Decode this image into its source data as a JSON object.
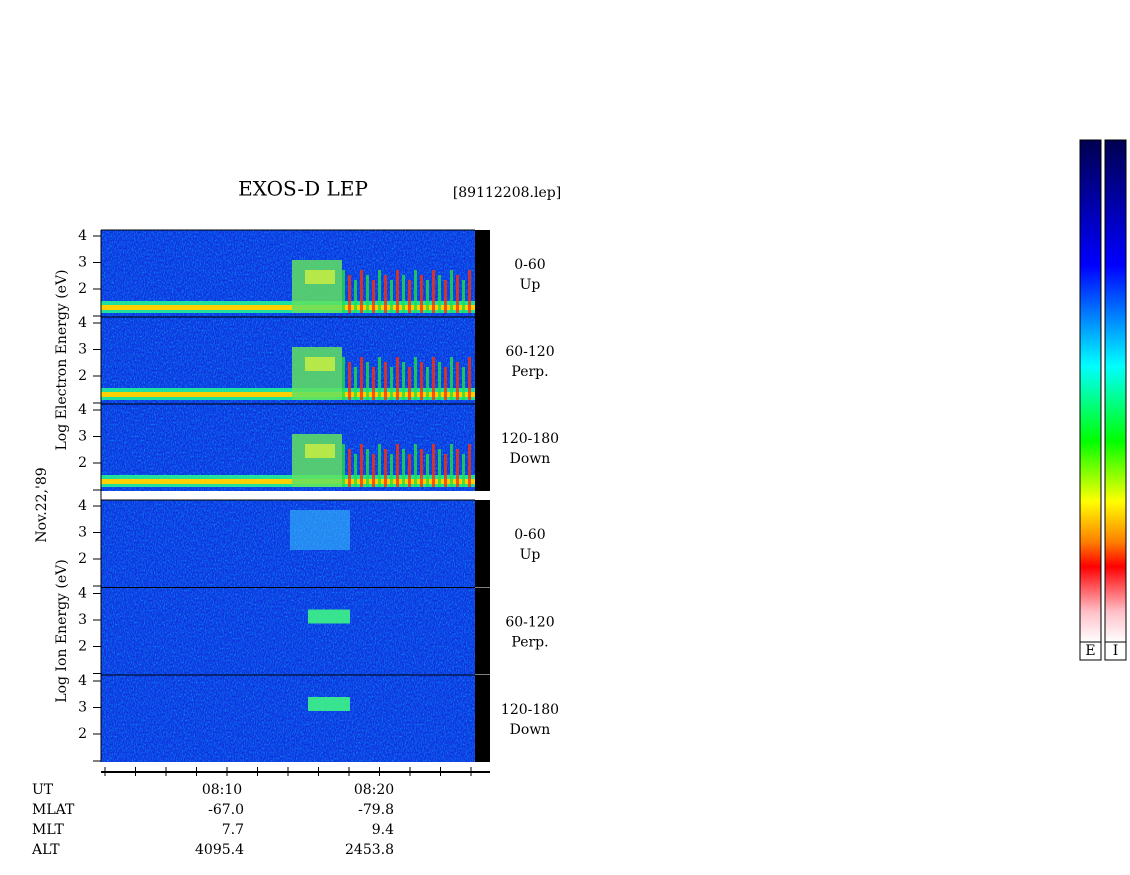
{
  "header": {
    "title": "EXOS-D LEP",
    "file": "[89112208.lep]",
    "date": "Nov.22,'89"
  },
  "energy_ticks": [
    4,
    3,
    2
  ],
  "electron": {
    "axis_label": "Log  Electron  Energy (eV)",
    "channels": [
      {
        "range": "0-60",
        "direction": "Up"
      },
      {
        "range": "60-120",
        "direction": "Perp."
      },
      {
        "range": "120-180",
        "direction": "Down"
      }
    ]
  },
  "ion": {
    "axis_label": "Log  Ion  Energy (eV)",
    "channels": [
      {
        "range": "0-60",
        "direction": "Up"
      },
      {
        "range": "60-120",
        "direction": "Perp."
      },
      {
        "range": "120-180",
        "direction": "Down"
      }
    ]
  },
  "time_ticks": [
    "08:10",
    "08:20"
  ],
  "orbit": [
    {
      "name": "UT",
      "values": []
    },
    {
      "name": "MLAT",
      "values": [
        "-67.0",
        "-79.8"
      ]
    },
    {
      "name": "MLT",
      "values": [
        "7.7",
        "9.4"
      ]
    },
    {
      "name": "ALT",
      "values": [
        "4095.4",
        "2453.8"
      ]
    }
  ],
  "colorbars": [
    "E",
    "I"
  ]
}
